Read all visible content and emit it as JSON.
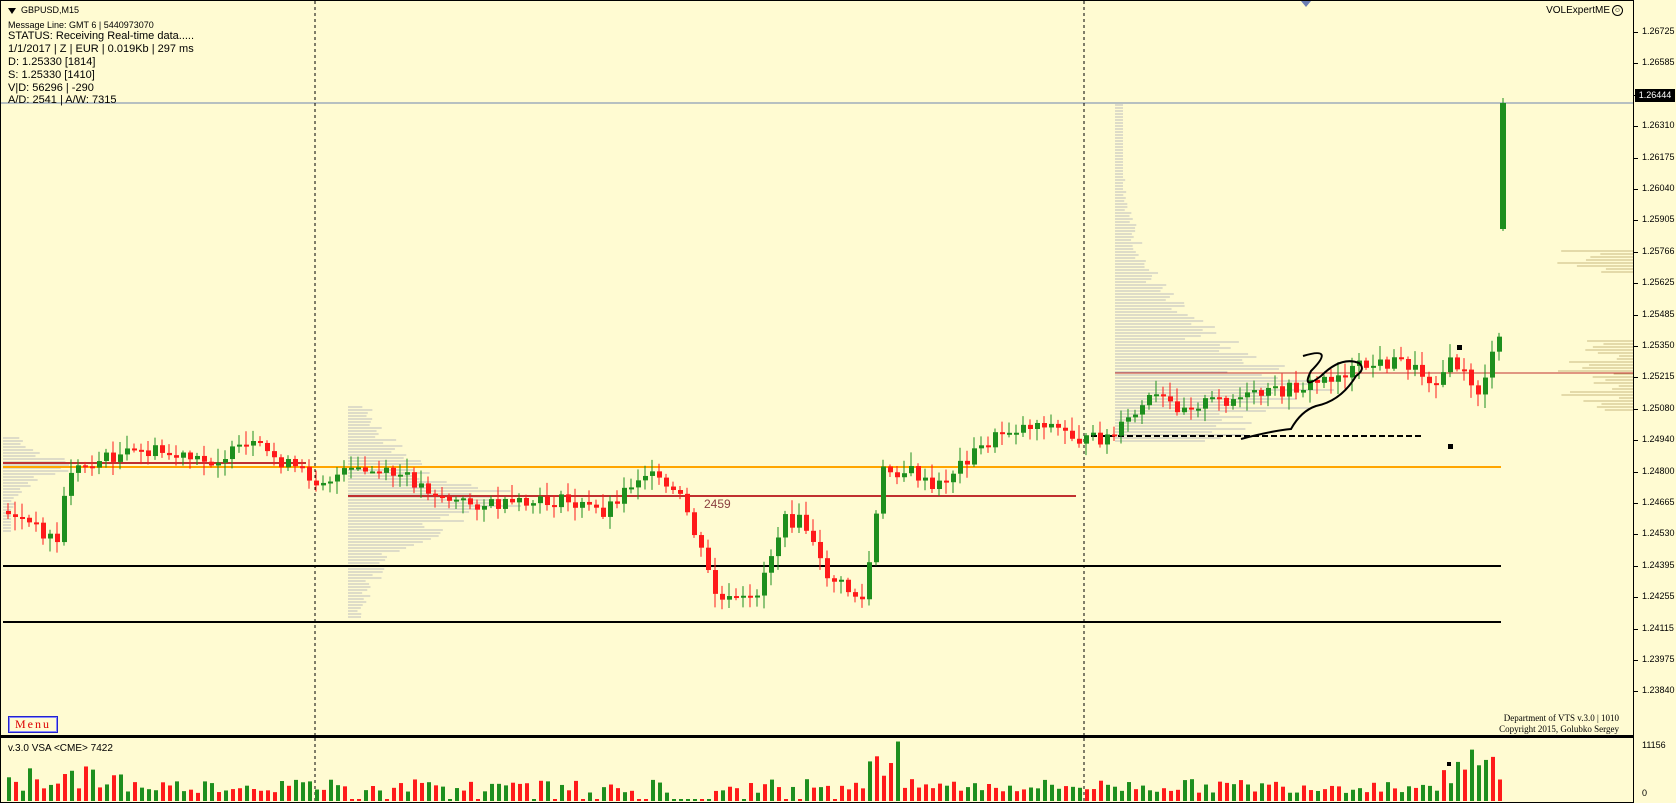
{
  "chart": {
    "symbol": "GBPUSD,M15",
    "message_line": "Message Line: GMT 6 | 5440973070",
    "status": "STATUS:  Receiving Real-time data.....",
    "info_lines": [
      "1/1/2017 | Z | EUR | 0.019Kb | 297 ms",
      "D: 1.25330  [1814]",
      "S: 1.25330  [1410]",
      "V|D: 56296 | -290",
      "A/D: 2541 | A/W: 7315"
    ],
    "expert_name": "VOLExpertME",
    "level_label": "2459",
    "menu_label": "Menu",
    "copyright_line1": "Department of VTS  v.3.0 | 1010",
    "copyright_line2": "Copyright 2015, Golubko Sergey",
    "colors": {
      "background": "#fffbd2",
      "bull": "#1e8f1e",
      "bear": "#ff1a1a",
      "level_orange": "#ffa500",
      "level_red": "#c03030",
      "grid_sep": "#000000",
      "bid_line": "#6f86b0"
    }
  },
  "price_axis": {
    "ticks": [
      "1.26725",
      "1.26585",
      "1.26444",
      "1.26310",
      "1.26175",
      "1.26040",
      "1.25905",
      "1.25766",
      "1.25625",
      "1.25485",
      "1.25350",
      "1.25215",
      "1.25080",
      "1.24940",
      "1.24800",
      "1.24665",
      "1.24530",
      "1.24395",
      "1.24255",
      "1.24115",
      "1.23975",
      "1.23840"
    ],
    "current_price": "1.26444"
  },
  "volume_pane": {
    "title": "v.3.0 VSA <CME> 7422",
    "max_label": "11156",
    "min_label": "0"
  }
}
